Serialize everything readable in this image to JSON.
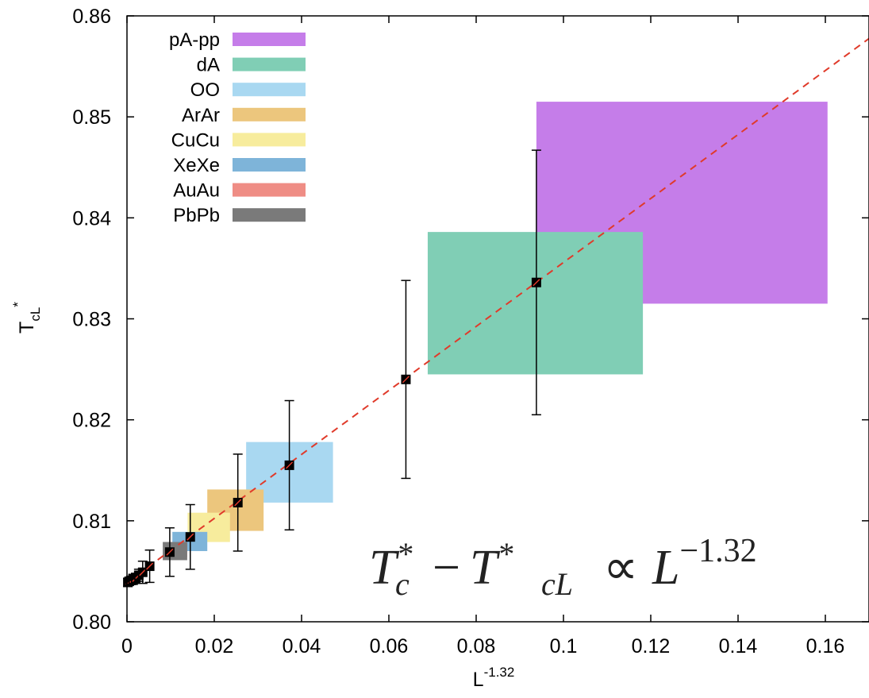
{
  "chart_data": {
    "type": "scatter",
    "xlabel": {
      "base": "L",
      "sup": "-1.32"
    },
    "ylabel": {
      "base": "T",
      "sub": "cL",
      "sup": "*"
    },
    "xlim": [
      0,
      0.17
    ],
    "ylim": [
      0.8,
      0.86
    ],
    "xticks": [
      {
        "value": 0,
        "label": "0"
      },
      {
        "value": 0.02,
        "label": "0.02"
      },
      {
        "value": 0.04,
        "label": "0.04"
      },
      {
        "value": 0.06,
        "label": "0.06"
      },
      {
        "value": 0.08,
        "label": "0.08"
      },
      {
        "value": 0.1,
        "label": "0.1"
      },
      {
        "value": 0.12,
        "label": "0.12"
      },
      {
        "value": 0.14,
        "label": "0.14"
      },
      {
        "value": 0.16,
        "label": "0.16"
      }
    ],
    "yticks": [
      {
        "value": 0.8,
        "label": "0.80"
      },
      {
        "value": 0.81,
        "label": "0.81"
      },
      {
        "value": 0.82,
        "label": "0.82"
      },
      {
        "value": 0.83,
        "label": "0.83"
      },
      {
        "value": 0.84,
        "label": "0.84"
      },
      {
        "value": 0.85,
        "label": "0.85"
      },
      {
        "value": 0.86,
        "label": "0.86"
      }
    ],
    "grid": false,
    "legend_position": "top-left",
    "regions": [
      {
        "name": "pA-pp",
        "color": "#c57de9",
        "x": [
          0.0938,
          0.1605
        ],
        "y": [
          0.8315,
          0.8515
        ]
      },
      {
        "name": "dA",
        "color": "#80ceb5",
        "x": [
          0.0689,
          0.1182
        ],
        "y": [
          0.8245,
          0.8386
        ]
      },
      {
        "name": "OO",
        "color": "#a9d8f1",
        "x": [
          0.0273,
          0.0472
        ],
        "y": [
          0.8118,
          0.8178
        ]
      },
      {
        "name": "ArAr",
        "color": "#ecc67d",
        "x": [
          0.0184,
          0.0313
        ],
        "y": [
          0.809,
          0.8131
        ]
      },
      {
        "name": "CuCu",
        "color": "#f7ec9d",
        "x": [
          0.0139,
          0.0236
        ],
        "y": [
          0.8079,
          0.8108
        ]
      },
      {
        "name": "XeXe",
        "color": "#7eb4d9",
        "x": [
          0.0104,
          0.0184
        ],
        "y": [
          0.807,
          0.8089
        ]
      },
      {
        "name": "AuAu",
        "color": "#ef8d85",
        "x": [
          0.0097,
          0.0138
        ],
        "y": [
          0.8064,
          0.8079
        ]
      },
      {
        "name": "PbPb",
        "color": "#7a7a7a",
        "x": [
          0.0082,
          0.0138
        ],
        "y": [
          0.8061,
          0.8079
        ]
      }
    ],
    "points": [
      {
        "x": 0.0002,
        "y": 0.8039,
        "err": 0.0004
      },
      {
        "x": 0.0005,
        "y": 0.804,
        "err": 0.0004
      },
      {
        "x": 0.0009,
        "y": 0.8041,
        "err": 0.0004
      },
      {
        "x": 0.0014,
        "y": 0.8042,
        "err": 0.0005
      },
      {
        "x": 0.002,
        "y": 0.8043,
        "err": 0.0005
      },
      {
        "x": 0.0027,
        "y": 0.8046,
        "err": 0.0006
      },
      {
        "x": 0.0036,
        "y": 0.8049,
        "err": 0.0011
      },
      {
        "x": 0.0052,
        "y": 0.8055,
        "err": 0.0016
      },
      {
        "x": 0.0098,
        "y": 0.8069,
        "err": 0.0024
      },
      {
        "x": 0.0145,
        "y": 0.8084,
        "err": 0.0032
      },
      {
        "x": 0.0254,
        "y": 0.8118,
        "err": 0.0048
      },
      {
        "x": 0.0372,
        "y": 0.8155,
        "err": 0.0064
      },
      {
        "x": 0.0639,
        "y": 0.824,
        "err": 0.0098
      },
      {
        "x": 0.0938,
        "y": 0.8336,
        "err": 0.0131
      }
    ],
    "fit_line": {
      "slope": 0.3168,
      "intercept": 0.8039,
      "color": "#e03a2a",
      "style": "dashed"
    },
    "annotation": {
      "lhs_base": "T",
      "lhs_sup": "*",
      "lhs_sub": "c",
      "minus": "−",
      "rhs_base": "T",
      "rhs_sup": "*",
      "rhs_sub": "cL",
      "propto": "∝",
      "power_base": "L",
      "power_exp": "−1.32"
    }
  }
}
